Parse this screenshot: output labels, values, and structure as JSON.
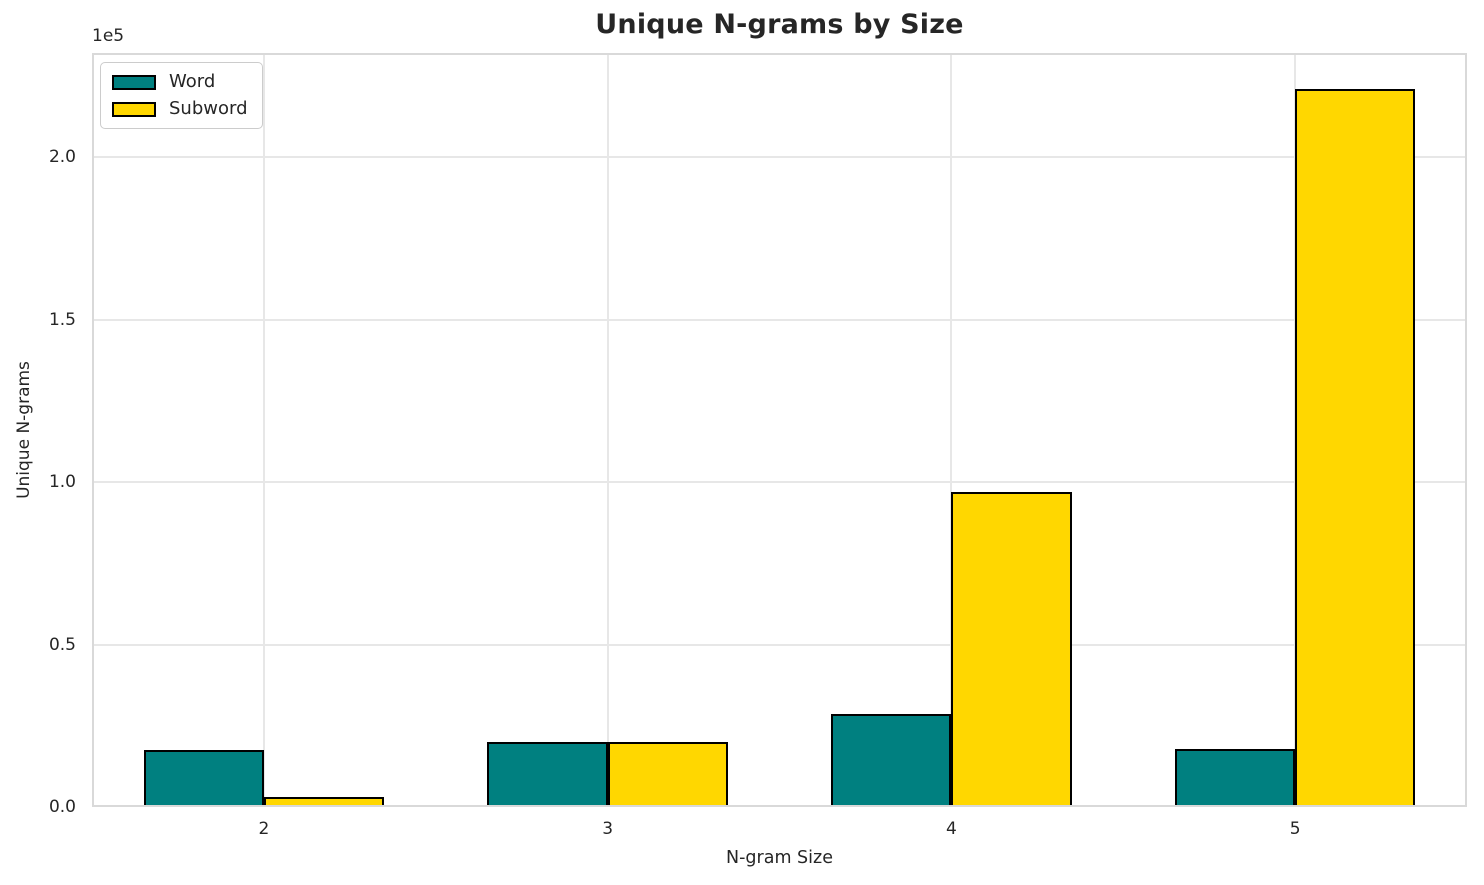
{
  "chart_data": {
    "type": "bar",
    "title": "Unique N-grams by Size",
    "xlabel": "N-gram Size",
    "ylabel": "Unique N-grams",
    "y_offset_label": "1e5",
    "categories": [
      "2",
      "3",
      "4",
      "5"
    ],
    "series": [
      {
        "name": "Word",
        "color": "#008080",
        "values": [
          17500,
          20000,
          28500,
          18000
        ]
      },
      {
        "name": "Subword",
        "color": "#FFD700",
        "values": [
          3000,
          20000,
          97000,
          221000
        ]
      }
    ],
    "bar_edge_color": "#000000",
    "bar_group_width": 0.7,
    "ylim": [
      0,
      232000
    ],
    "yticks": {
      "values": [
        0,
        50000,
        100000,
        150000,
        200000
      ],
      "labels": [
        "0.0",
        "0.5",
        "1.0",
        "1.5",
        "2.0"
      ]
    },
    "grid": true,
    "grid_color": "#e7e7e7",
    "axes_border_color": "#d9d9d9",
    "text_color": "#262626",
    "background_color": "#ffffff",
    "legend_position": "upper left"
  }
}
